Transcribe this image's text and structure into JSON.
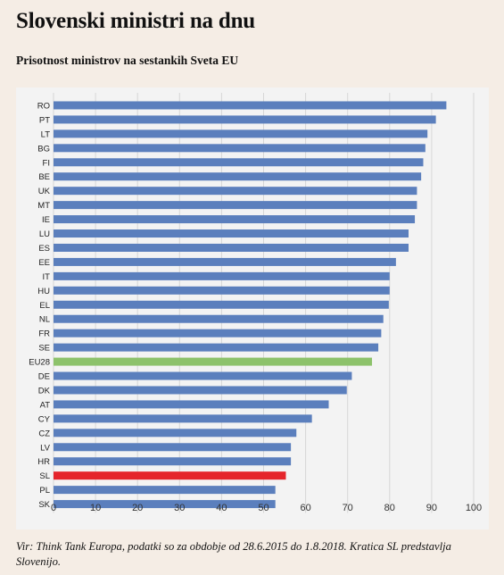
{
  "header": {
    "title": "Slovenski ministri na dnu",
    "subtitle": "Prisotnost ministrov na sestankih Sveta EU"
  },
  "footer": {
    "source": "Vir: Think Tank Europa, podatki so za obdobje od 28.6.2015 do 1.8.2018. Kratica SL predstavlja Slovenijo."
  },
  "colors": {
    "default_bar": "#5b7fbd",
    "eu28_bar": "#8dc26b",
    "sl_bar": "#e5252b",
    "grid": "#d6d6d6",
    "plot_bg": "#f3f3f3"
  },
  "chart_data": {
    "type": "bar",
    "orientation": "horizontal",
    "categories": [
      "RO",
      "PT",
      "LT",
      "BG",
      "FI",
      "BE",
      "UK",
      "MT",
      "IE",
      "LU",
      "ES",
      "EE",
      "IT",
      "HU",
      "EL",
      "NL",
      "FR",
      "SE",
      "EU28",
      "DE",
      "DK",
      "AT",
      "CY",
      "CZ",
      "LV",
      "HR",
      "SL",
      "PL",
      "SK"
    ],
    "values": [
      93.5,
      91,
      89,
      88.5,
      88,
      87.5,
      86.5,
      86.5,
      86,
      84.5,
      84.5,
      81.5,
      80,
      80,
      79.8,
      78.5,
      78,
      77.3,
      75.8,
      71,
      69.8,
      65.5,
      61.5,
      57.8,
      56.5,
      56.5,
      55.3,
      52.8,
      52.8
    ],
    "highlight": {
      "EU28": "eu28_bar",
      "SL": "sl_bar"
    },
    "xlim": [
      0,
      100
    ],
    "xticks": [
      0,
      10,
      20,
      30,
      40,
      50,
      60,
      70,
      80,
      90,
      100
    ],
    "grid": true,
    "title": "",
    "xlabel": "",
    "ylabel": ""
  }
}
